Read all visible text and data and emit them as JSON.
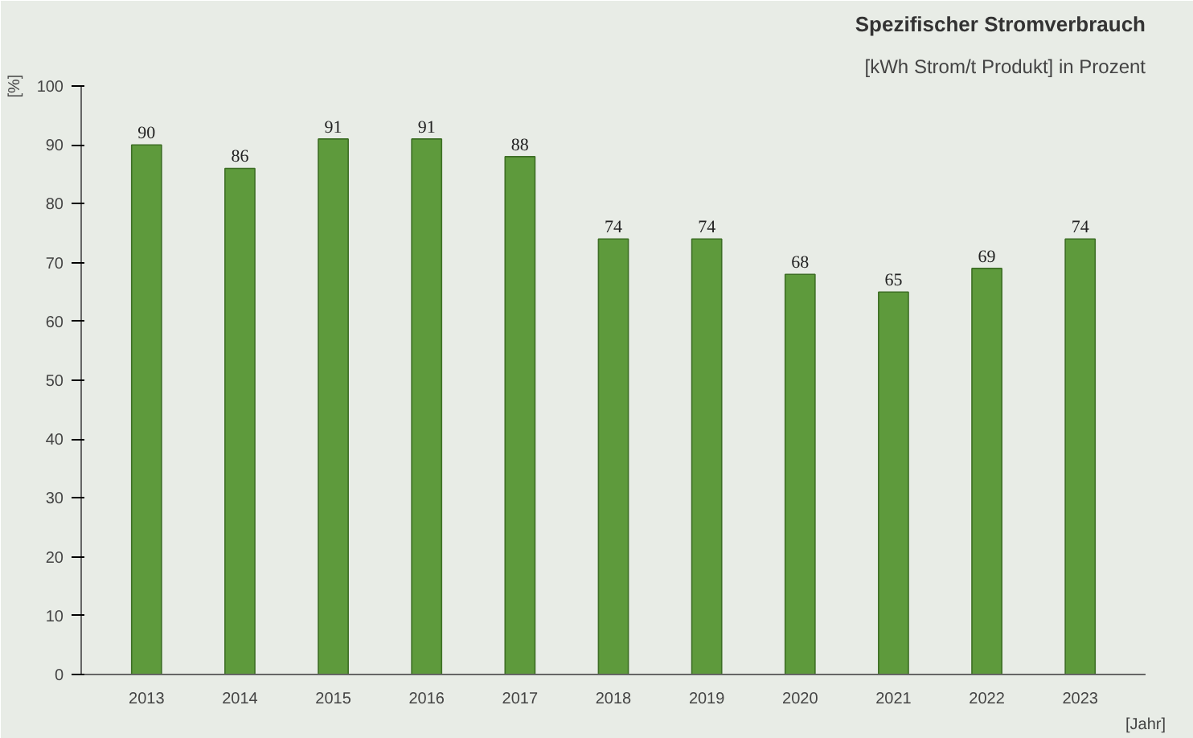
{
  "chart_data": {
    "type": "bar",
    "title": "Spezifischer Stromverbrauch",
    "subtitle": "[kWh Strom/t Produkt] in Prozent",
    "xlabel": "[Jahr]",
    "ylabel": "[%]",
    "categories": [
      "2013",
      "2014",
      "2015",
      "2016",
      "2017",
      "2018",
      "2019",
      "2020",
      "2021",
      "2022",
      "2023"
    ],
    "values": [
      90,
      86,
      91,
      91,
      88,
      74,
      74,
      68,
      65,
      69,
      74
    ],
    "color": "#5e9a3c",
    "ylim": [
      0,
      100
    ],
    "yticks": [
      0,
      10,
      20,
      30,
      40,
      50,
      60,
      70,
      80,
      90,
      100
    ],
    "grid": false,
    "data_labels": true
  }
}
